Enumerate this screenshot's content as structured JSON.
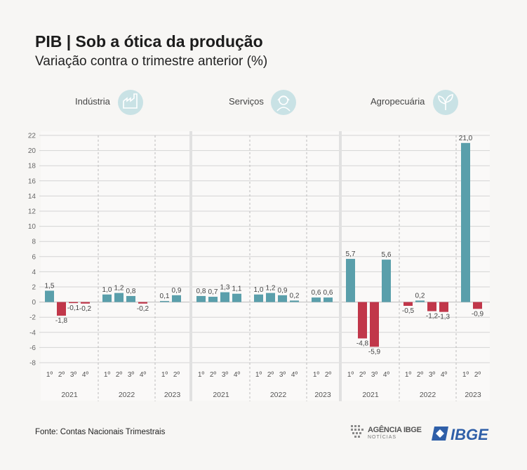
{
  "header": {
    "title": "PIB | Sob a ótica da produção",
    "subtitle": "Variação contra o trimestre anterior (%)"
  },
  "footer": {
    "source": "Fonte: Contas Nacionais Trimestrais",
    "agencia_logo": "AGÊNCIA IBGE",
    "agencia_sub": "NOTÍCIAS",
    "ibge_logo": "IBGE"
  },
  "colors": {
    "positive": "#5a9fab",
    "negative": "#c1374a",
    "grid": "#d4d4d4",
    "icon_bg": "#c9e2e5"
  },
  "chart_data": {
    "type": "bar",
    "ylim": [
      -8,
      22
    ],
    "yticks": [
      -8,
      -6,
      -4,
      -2,
      0,
      2,
      4,
      6,
      8,
      10,
      12,
      14,
      16,
      18,
      20,
      22
    ],
    "grid": true,
    "panels": [
      {
        "name": "Indústria",
        "icon": "factory-icon",
        "years": [
          {
            "year": "2021",
            "quarters": [
              "1º",
              "2º",
              "3º",
              "4º"
            ],
            "values": [
              1.5,
              -1.8,
              -0.1,
              -0.2
            ],
            "labels": [
              "1,5",
              "-1,8",
              "-0,1",
              "-0,2"
            ]
          },
          {
            "year": "2022",
            "quarters": [
              "1º",
              "2º",
              "3º",
              "4º"
            ],
            "values": [
              1.0,
              1.2,
              0.8,
              -0.2
            ],
            "labels": [
              "1,0",
              "1,2",
              "0,8",
              "-0,2"
            ]
          },
          {
            "year": "2023",
            "quarters": [
              "1º",
              "2º"
            ],
            "values": [
              0.1,
              0.9
            ],
            "labels": [
              "0,1",
              "0,9"
            ]
          }
        ]
      },
      {
        "name": "Serviços",
        "icon": "headset-person-icon",
        "years": [
          {
            "year": "2021",
            "quarters": [
              "1º",
              "2º",
              "3º",
              "4º"
            ],
            "values": [
              0.8,
              0.7,
              1.3,
              1.1
            ],
            "labels": [
              "0,8",
              "0,7",
              "1,3",
              "1,1"
            ]
          },
          {
            "year": "2022",
            "quarters": [
              "1º",
              "2º",
              "3º",
              "4º"
            ],
            "values": [
              1.0,
              1.2,
              0.9,
              0.2
            ],
            "labels": [
              "1,0",
              "1,2",
              "0,9",
              "0,2"
            ]
          },
          {
            "year": "2023",
            "quarters": [
              "1º",
              "2º"
            ],
            "values": [
              0.6,
              0.6
            ],
            "labels": [
              "0,6",
              "0,6"
            ]
          }
        ]
      },
      {
        "name": "Agropecuária",
        "icon": "sprout-icon",
        "years": [
          {
            "year": "2021",
            "quarters": [
              "1º",
              "2º",
              "3º",
              "4º"
            ],
            "values": [
              5.7,
              -4.8,
              -5.9,
              5.6
            ],
            "labels": [
              "5,7",
              "-4,8",
              "-5,9",
              "5,6"
            ]
          },
          {
            "year": "2022",
            "quarters": [
              "1º",
              "2º",
              "3º",
              "4º"
            ],
            "values": [
              -0.5,
              0.2,
              -1.2,
              -1.3
            ],
            "labels": [
              "-0,5",
              "0,2",
              "-1,2",
              "-1,3"
            ]
          },
          {
            "year": "2023",
            "quarters": [
              "1º",
              "2º"
            ],
            "values": [
              21.0,
              -0.9
            ],
            "labels": [
              "21,0",
              "-0,9"
            ]
          }
        ]
      }
    ]
  }
}
